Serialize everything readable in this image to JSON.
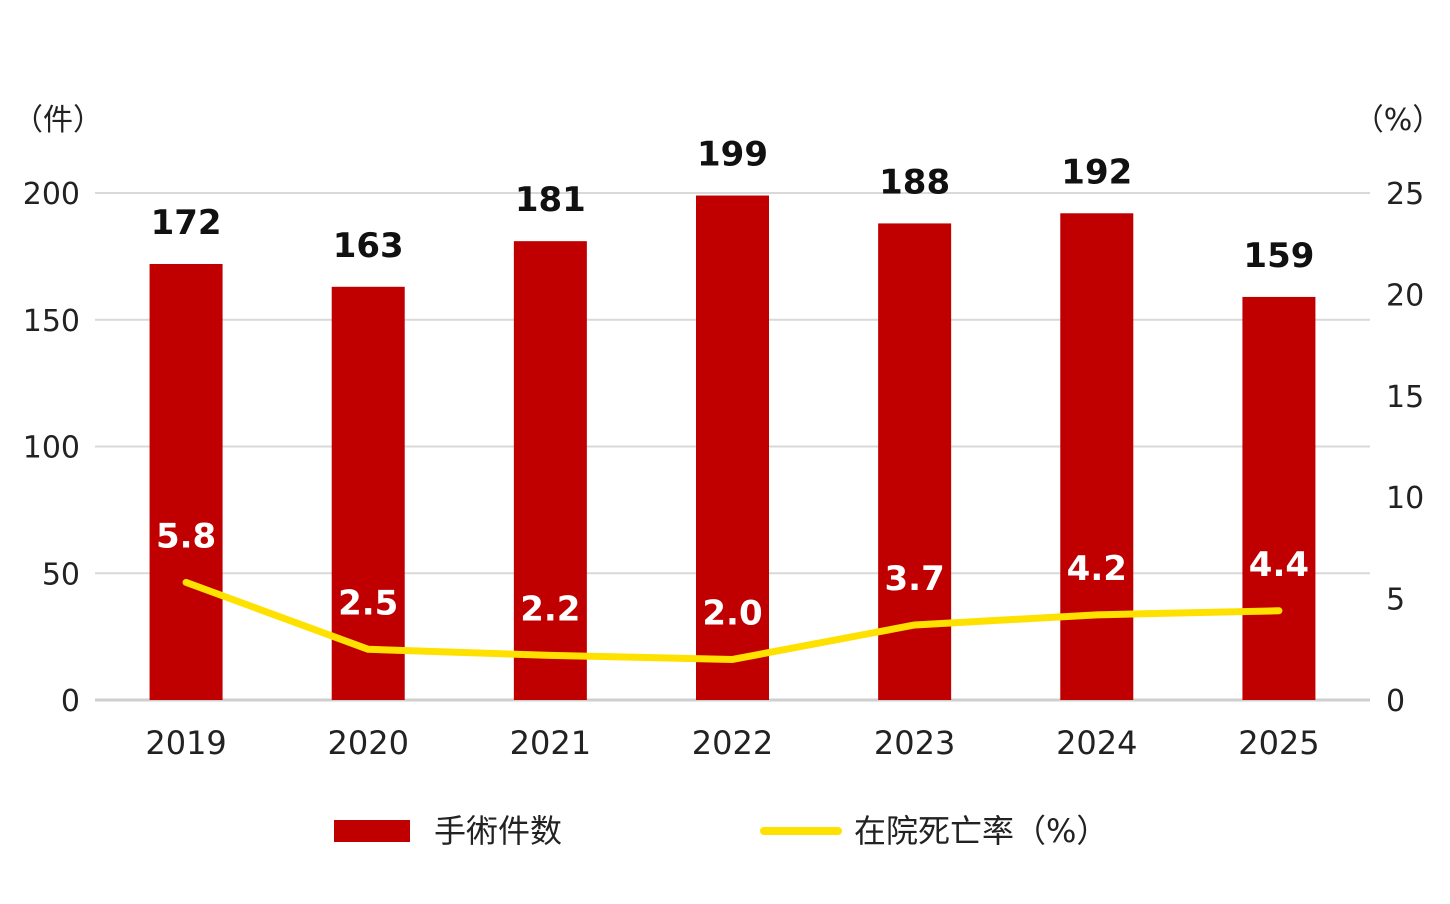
{
  "chart_data": {
    "type": "bar+line",
    "categories": [
      "2019",
      "2020",
      "2021",
      "2022",
      "2023",
      "2024",
      "2025"
    ],
    "series": [
      {
        "name": "手術件数",
        "type": "bar",
        "axis": "left",
        "color": "#c00000",
        "values": [
          172,
          163,
          181,
          199,
          188,
          192,
          159
        ]
      },
      {
        "name": "在院死亡率（%）",
        "type": "line",
        "axis": "right",
        "color": "#ffe100",
        "values": [
          5.8,
          2.5,
          2.2,
          2.0,
          3.7,
          4.2,
          4.4
        ]
      }
    ],
    "left_axis": {
      "unit": "（件）",
      "ylim": [
        0,
        200
      ],
      "ticks": [
        "0",
        "50",
        "100",
        "150",
        "200"
      ]
    },
    "right_axis": {
      "unit": "（%）",
      "ylim": [
        0,
        25
      ],
      "ticks": [
        "0",
        "5",
        "10",
        "15",
        "20",
        "25"
      ]
    },
    "grid": true,
    "legend": "bottom"
  }
}
